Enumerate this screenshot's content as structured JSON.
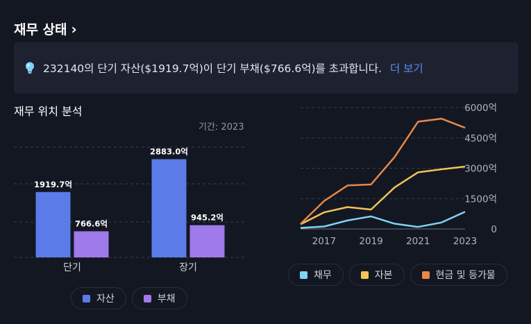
{
  "header": {
    "title": "재무 상태"
  },
  "insight": {
    "message": "232140의 단기 자산($1919.7억)이 단기 부채($766.6억)를 초과합니다.",
    "link": "더 보기"
  },
  "position": {
    "title": "재무 위치 분석",
    "period": "기간: 2023"
  },
  "colors": {
    "assets": "#5b7be8",
    "liabilities": "#9f7aea",
    "debt": "#7fd3f7",
    "equity": "#f4c35a",
    "cash": "#e8884a"
  },
  "chart_data": [
    {
      "type": "bar",
      "categories": [
        "단기",
        "장기"
      ],
      "series": [
        {
          "name": "자산",
          "values": [
            1919.7,
            2883.0
          ],
          "labels": [
            "1919.7억",
            "2883.0억"
          ]
        },
        {
          "name": "부채",
          "values": [
            766.6,
            945.2
          ],
          "labels": [
            "766.6억",
            "945.2억"
          ]
        }
      ],
      "ylim": [
        0,
        3300
      ],
      "grid": true,
      "legend": "bottom"
    },
    {
      "type": "line",
      "x": [
        2016,
        2017,
        2018,
        2019,
        2020,
        2021,
        2022,
        2023
      ],
      "x_ticks": [
        "2017",
        "2019",
        "2021",
        "2023"
      ],
      "y_ticks": [
        "0",
        "1500억",
        "3000억",
        "4500억",
        "6000억"
      ],
      "ylim": [
        0,
        6000
      ],
      "series": [
        {
          "name": "채무",
          "values": [
            50,
            120,
            420,
            620,
            260,
            100,
            320,
            850
          ]
        },
        {
          "name": "자본",
          "values": [
            230,
            820,
            1080,
            960,
            2050,
            2800,
            2950,
            3080
          ]
        },
        {
          "name": "현금 및 등가물",
          "values": [
            250,
            1380,
            2150,
            2200,
            3550,
            5300,
            5450,
            5000
          ]
        }
      ],
      "grid": true,
      "legend": "bottom"
    }
  ]
}
